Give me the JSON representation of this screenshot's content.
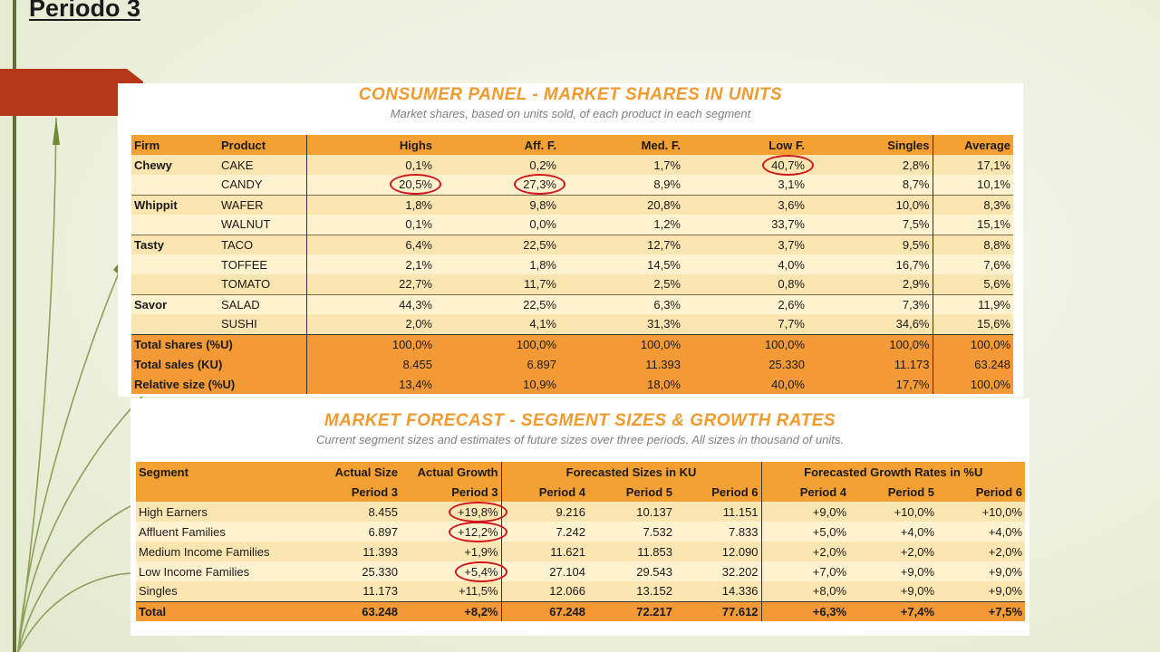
{
  "slide": {
    "heading": "Periodo 3"
  },
  "panel1": {
    "title": "CONSUMER PANEL  -  MARKET SHARES IN UNITS",
    "subtitle": "Market shares, based on units sold, of each product in each segment",
    "headers": [
      "Firm",
      "Product",
      "Highs",
      "Aff. F.",
      "Med. F.",
      "Low F.",
      "Singles",
      "Average"
    ],
    "rows": [
      [
        "Chewy",
        "CAKE",
        "0,1%",
        "0,2%",
        "1,7%",
        "40,7%",
        "2,8%",
        "17,1%"
      ],
      [
        "",
        "CANDY",
        "20,5%",
        "27,3%",
        "8,9%",
        "3,1%",
        "8,7%",
        "10,1%"
      ],
      [
        "Whippit",
        "WAFER",
        "1,8%",
        "9,8%",
        "20,8%",
        "3,6%",
        "10,0%",
        "8,3%"
      ],
      [
        "",
        "WALNUT",
        "0,1%",
        "0,0%",
        "1,2%",
        "33,7%",
        "7,5%",
        "15,1%"
      ],
      [
        "Tasty",
        "TACO",
        "6,4%",
        "22,5%",
        "12,7%",
        "3,7%",
        "9,5%",
        "8,8%"
      ],
      [
        "",
        "TOFFEE",
        "2,1%",
        "1,8%",
        "14,5%",
        "4,0%",
        "16,7%",
        "7,6%"
      ],
      [
        "",
        "TOMATO",
        "22,7%",
        "11,7%",
        "2,5%",
        "0,8%",
        "2,9%",
        "5,6%"
      ],
      [
        "Savor",
        "SALAD",
        "44,3%",
        "22,5%",
        "6,3%",
        "2,6%",
        "7,3%",
        "11,9%"
      ],
      [
        "",
        "SUSHI",
        "2,0%",
        "4,1%",
        "31,3%",
        "7,7%",
        "34,6%",
        "15,6%"
      ]
    ],
    "totals": [
      [
        "Total shares (%U)",
        "100,0%",
        "100,0%",
        "100,0%",
        "100,0%",
        "100,0%",
        "100,0%"
      ],
      [
        "Total sales (KU)",
        "8.455",
        "6.897",
        "11.393",
        "25.330",
        "11.173",
        "63.248"
      ],
      [
        "Relative size (%U)",
        "13,4%",
        "10,9%",
        "18,0%",
        "40,0%",
        "17,7%",
        "100,0%"
      ]
    ]
  },
  "panel2": {
    "title": "MARKET FORECAST  -  SEGMENT SIZES & GROWTH RATES",
    "subtitle": "Current segment sizes and estimates of future sizes over three periods. All sizes in thousand of units.",
    "header1": [
      "Segment",
      "Actual Size",
      "Actual Growth",
      "Forecasted Sizes in KU",
      "Forecasted Growth Rates in %U"
    ],
    "header2": [
      "Period 3",
      "Period 3",
      "Period 4",
      "Period 5",
      "Period 6",
      "Period 4",
      "Period 5",
      "Period 6"
    ],
    "rows": [
      [
        "High Earners",
        "8.455",
        "+19,8%",
        "9.216",
        "10.137",
        "11.151",
        "+9,0%",
        "+10,0%",
        "+10,0%"
      ],
      [
        "Affluent Families",
        "6.897",
        "+12,2%",
        "7.242",
        "7.532",
        "7.833",
        "+5,0%",
        "+4,0%",
        "+4,0%"
      ],
      [
        "Medium Income Families",
        "11.393",
        "+1,9%",
        "11.621",
        "11.853",
        "12.090",
        "+2,0%",
        "+2,0%",
        "+2,0%"
      ],
      [
        "Low Income Families",
        "25.330",
        "+5,4%",
        "27.104",
        "29.543",
        "32.202",
        "+7,0%",
        "+9,0%",
        "+9,0%"
      ],
      [
        "Singles",
        "11.173",
        "+11,5%",
        "12.066",
        "13.152",
        "14.336",
        "+8,0%",
        "+9,0%",
        "+9,0%"
      ]
    ],
    "total": [
      "Total",
      "63.248",
      "+8,2%",
      "67.248",
      "72.217",
      "77.612",
      "+6,3%",
      "+7,4%",
      "+7,5%"
    ]
  },
  "colors": {
    "accent": "#f29a2e",
    "header": "#f5a033",
    "row": "#fbe6b2",
    "row_alt": "#fff3cf",
    "circle": "#d0151c",
    "tab": "#b5371a"
  }
}
